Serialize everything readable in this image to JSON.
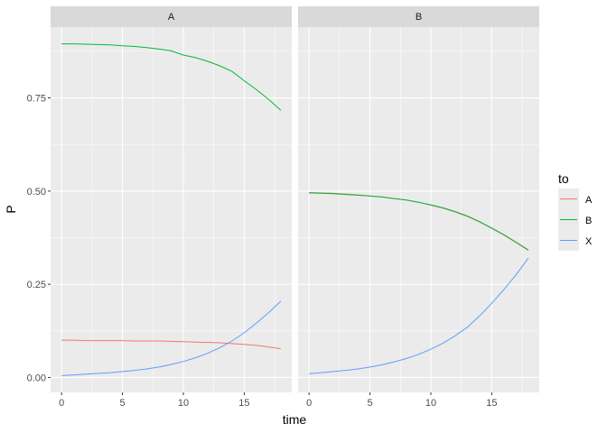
{
  "chart_data": {
    "type": "line",
    "xlabel": "time",
    "ylabel": "P",
    "xlim": [
      -0.9,
      18.9
    ],
    "ylim": [
      -0.04,
      0.94
    ],
    "x_ticks": [
      0,
      5,
      10,
      15
    ],
    "x_tick_labels": [
      "0",
      "5",
      "10",
      "15"
    ],
    "y_ticks": [
      0,
      0.25,
      0.5,
      0.75
    ],
    "y_tick_labels": [
      "0.00",
      "0.25",
      "0.50",
      "0.75"
    ],
    "grid": true,
    "legend": {
      "title": "to",
      "position": "right",
      "entries": [
        "A",
        "B",
        "X"
      ]
    },
    "colors": {
      "A": "#F8766D",
      "B": "#00BA38",
      "X": "#619CFF"
    },
    "x": [
      0,
      1,
      2,
      3,
      4,
      5,
      6,
      7,
      8,
      9,
      10,
      11,
      12,
      13,
      14,
      15,
      16,
      17,
      18
    ],
    "facets": [
      {
        "label": "A",
        "series": [
          {
            "name": "A",
            "values": [
              0.1,
              0.1,
              0.099,
              0.099,
              0.099,
              0.099,
              0.098,
              0.098,
              0.098,
              0.097,
              0.096,
              0.095,
              0.094,
              0.093,
              0.091,
              0.089,
              0.086,
              0.082,
              0.077
            ]
          },
          {
            "name": "B",
            "values": [
              0.895,
              0.895,
              0.894,
              0.893,
              0.892,
              0.89,
              0.888,
              0.885,
              0.881,
              0.876,
              0.865,
              0.858,
              0.848,
              0.836,
              0.821,
              0.796,
              0.772,
              0.746,
              0.717
            ]
          },
          {
            "name": "X",
            "values": [
              0.005,
              0.007,
              0.009,
              0.011,
              0.013,
              0.016,
              0.019,
              0.023,
              0.028,
              0.035,
              0.043,
              0.053,
              0.065,
              0.08,
              0.098,
              0.12,
              0.146,
              0.174,
              0.205
            ]
          }
        ]
      },
      {
        "label": "B",
        "series": [
          {
            "name": "A",
            "values": [
              0.496,
              0.495,
              0.494,
              0.492,
              0.49,
              0.487,
              0.484,
              0.48,
              0.476,
              0.47,
              0.462,
              0.454,
              0.444,
              0.432,
              0.417,
              0.4,
              0.382,
              0.362,
              0.341
            ]
          },
          {
            "name": "B",
            "values": [
              0.495,
              0.494,
              0.493,
              0.491,
              0.489,
              0.487,
              0.484,
              0.48,
              0.476,
              0.47,
              0.463,
              0.455,
              0.445,
              0.433,
              0.418,
              0.401,
              0.383,
              0.363,
              0.342
            ]
          },
          {
            "name": "X",
            "values": [
              0.01,
              0.013,
              0.016,
              0.019,
              0.023,
              0.028,
              0.034,
              0.042,
              0.051,
              0.062,
              0.076,
              0.092,
              0.112,
              0.135,
              0.165,
              0.199,
              0.236,
              0.276,
              0.32
            ]
          }
        ]
      }
    ]
  }
}
